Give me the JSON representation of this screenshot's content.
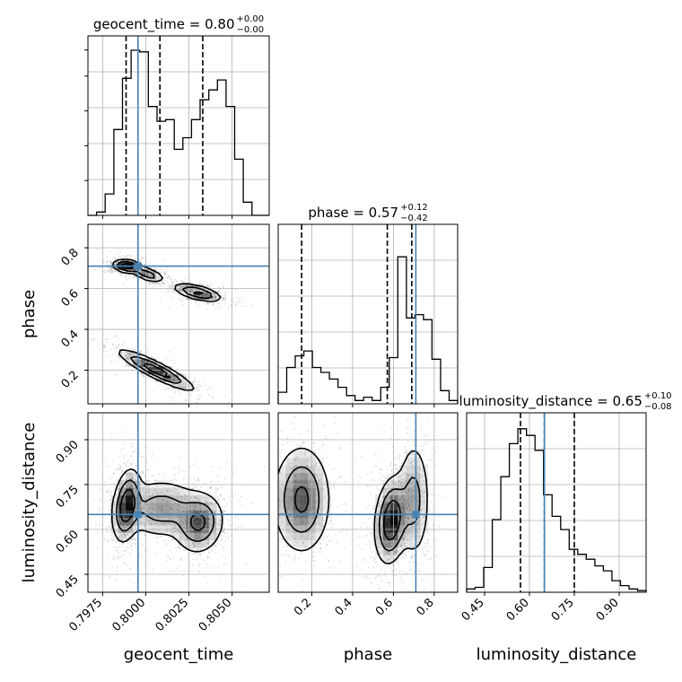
{
  "chart_data": {
    "type": "corner",
    "parameters": [
      "geocent_time",
      "phase",
      "luminosity_distance"
    ],
    "truth": {
      "geocent_time": 0.79955,
      "phase": 0.71,
      "luminosity_distance": 0.65
    },
    "truth_color": "#4682b4",
    "ranges": {
      "geocent_time": [
        0.79665,
        0.80715
      ],
      "phase": [
        0.035,
        0.915
      ],
      "luminosity_distance": [
        0.39,
        0.99
      ]
    },
    "ticks": {
      "geocent_time": {
        "values": [
          0.7975,
          0.8,
          0.8025,
          0.805
        ],
        "labels": [
          "0.7975",
          "0.8000",
          "0.8025",
          "0.8050"
        ]
      },
      "phase": {
        "values": [
          0.2,
          0.4,
          0.6,
          0.8
        ],
        "labels": [
          "0.2",
          "0.4",
          "0.6",
          "0.8"
        ]
      },
      "luminosity_distance": {
        "values": [
          0.45,
          0.6,
          0.75,
          0.9
        ],
        "labels": [
          "0.45",
          "0.60",
          "0.75",
          "0.90"
        ]
      }
    },
    "titles": [
      {
        "param": "geocent_time",
        "text": "geocent_time = 0.80",
        "sup": "+0.00",
        "sub": "−0.00"
      },
      {
        "param": "phase",
        "text": "phase = 0.57",
        "sup": "+0.12",
        "sub": "−0.42"
      },
      {
        "param": "luminosity_distance",
        "text": "luminosity_distance = 0.65",
        "sup": "+0.10",
        "sub": "−0.08"
      }
    ],
    "quantiles": {
      "geocent_time": [
        0.79886,
        0.80082,
        0.8033
      ],
      "phase": [
        0.15,
        0.57,
        0.69
      ],
      "luminosity_distance": [
        0.57,
        0.65,
        0.75
      ]
    },
    "histograms": {
      "geocent_time": [
        0.0,
        0.02,
        0.13,
        0.52,
        0.83,
        1.0,
        0.99,
        0.66,
        0.57,
        0.58,
        0.4,
        0.47,
        0.58,
        0.7,
        0.76,
        0.82,
        0.66,
        0.34,
        0.08,
        0.0,
        0.0
      ],
      "phase": [
        0.07,
        0.22,
        0.29,
        0.32,
        0.22,
        0.19,
        0.15,
        0.1,
        0.05,
        0.02,
        0.04,
        0.02,
        0.1,
        0.28,
        0.89,
        0.52,
        0.54,
        0.51,
        0.27,
        0.08,
        0.02
      ],
      "luminosity_distance": [
        0.02,
        0.03,
        0.15,
        0.44,
        0.7,
        0.9,
        0.99,
        0.95,
        0.86,
        0.59,
        0.46,
        0.38,
        0.26,
        0.23,
        0.2,
        0.16,
        0.13,
        0.07,
        0.04,
        0.02,
        0.01
      ]
    },
    "modes": {
      "geocent_time_vs_phase": [
        {
          "x": 0.7989,
          "y": 0.71,
          "sx": 0.0004,
          "sy": 0.015,
          "rho": -0.2,
          "w": 0.4
        },
        {
          "x": 0.8001,
          "y": 0.67,
          "sx": 0.0005,
          "sy": 0.02,
          "rho": -0.6,
          "w": 0.22
        },
        {
          "x": 0.803,
          "y": 0.58,
          "sx": 0.0007,
          "sy": 0.022,
          "rho": -0.6,
          "w": 0.3
        },
        {
          "x": 0.8006,
          "y": 0.2,
          "sx": 0.0011,
          "sy": 0.05,
          "rho": -0.9,
          "w": 0.35
        }
      ],
      "geocent_time_vs_luminosity_distance": [
        {
          "x": 0.7989,
          "y": 0.68,
          "sx": 0.0004,
          "sy": 0.06,
          "rho": 0.3,
          "w": 0.45
        },
        {
          "x": 0.8031,
          "y": 0.62,
          "sx": 0.0007,
          "sy": 0.05,
          "rho": 0.1,
          "w": 0.35
        },
        {
          "x": 0.8009,
          "y": 0.67,
          "sx": 0.0012,
          "sy": 0.05,
          "rho": 0.0,
          "w": 0.25
        }
      ],
      "phase_vs_luminosity_distance": [
        {
          "x": 0.15,
          "y": 0.7,
          "sx": 0.07,
          "sy": 0.09,
          "rho": 0.0,
          "w": 0.4
        },
        {
          "x": 0.59,
          "y": 0.63,
          "sx": 0.04,
          "sy": 0.07,
          "rho": 0.2,
          "w": 0.55
        },
        {
          "x": 0.7,
          "y": 0.7,
          "sx": 0.04,
          "sy": 0.1,
          "rho": 0.0,
          "w": 0.25
        }
      ]
    }
  }
}
